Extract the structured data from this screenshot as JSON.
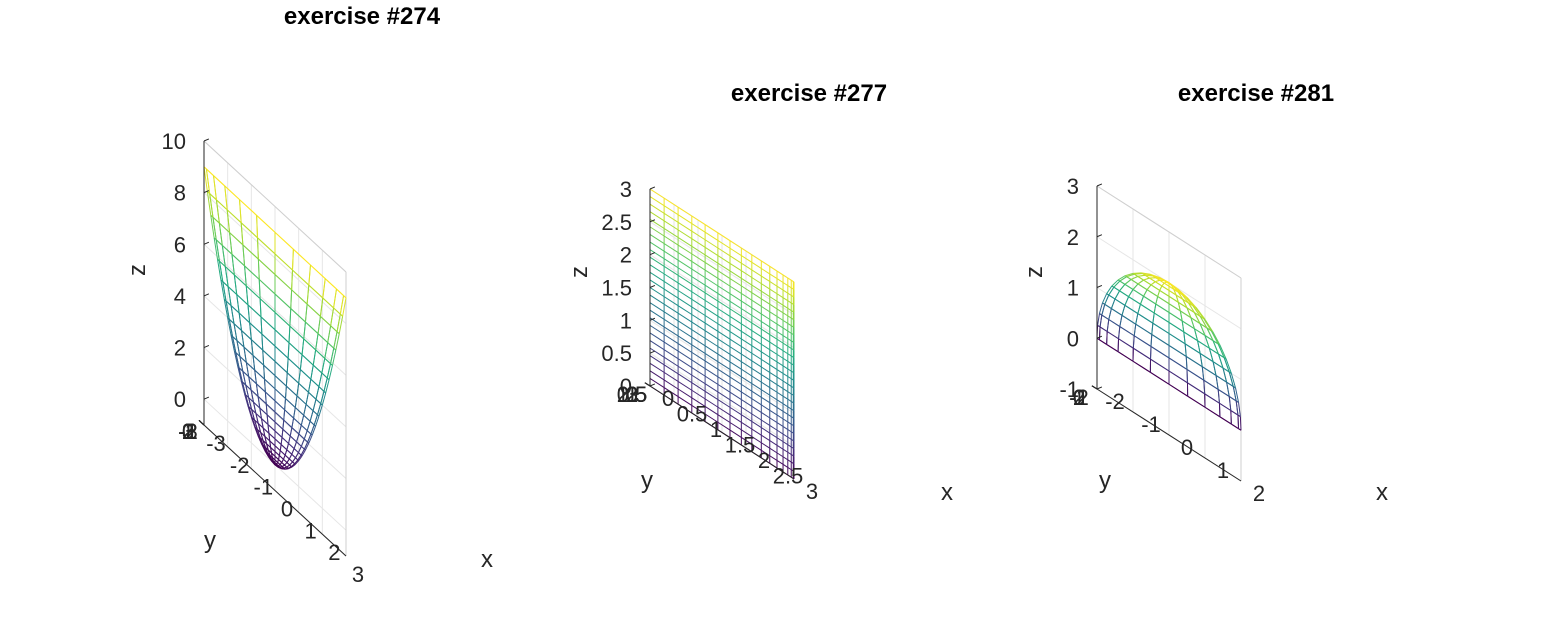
{
  "chart_data": [
    {
      "type": "surface-mesh",
      "title": "exercise #274",
      "xlabel": "x",
      "ylabel": "y",
      "zlabel": "z",
      "xlim": [
        -3,
        3
      ],
      "ylim": [
        -3,
        3
      ],
      "zlim": [
        -1,
        10
      ],
      "xticks": [
        "-3",
        "-2",
        "-1",
        "0",
        "1",
        "2",
        "3"
      ],
      "yticks": [
        "-3",
        "-2",
        "-1",
        "0",
        "1",
        "2",
        "3"
      ],
      "zticks": [
        "0",
        "2",
        "4",
        "6",
        "8",
        "10"
      ],
      "grid": true,
      "colormap": "viridis",
      "surface": "paraboloid z = x^2 + y^2, 0 <= r <= 3"
    },
    {
      "type": "surface-mesh",
      "title": "exercise #277",
      "xlabel": "x",
      "ylabel": "y",
      "zlabel": "z",
      "xlim": [
        0,
        3
      ],
      "ylim": [
        0,
        3
      ],
      "zlim": [
        0,
        3
      ],
      "xticks": [
        "0",
        "0.5",
        "1",
        "1.5",
        "2",
        "2.5",
        "3"
      ],
      "yticks": [
        "0",
        "0.5",
        "1",
        "1.5",
        "2",
        "2.5",
        "3"
      ],
      "zticks": [
        "0",
        "0.5",
        "1",
        "1.5",
        "2",
        "2.5",
        "3"
      ],
      "grid": true,
      "colormap": "viridis",
      "surface": "cylinder x^2 + y^2 = 9, first quadrant, 0 <= z <= 3"
    },
    {
      "type": "surface-mesh",
      "title": "exercise #281",
      "xlabel": "x",
      "ylabel": "y",
      "zlabel": "z",
      "xlim": [
        -2,
        2
      ],
      "ylim": [
        -2,
        2
      ],
      "zlim": [
        -1,
        3
      ],
      "xticks": [
        "-2",
        "-1",
        "0",
        "1",
        "2"
      ],
      "yticks": [
        "-2",
        "-1",
        "0",
        "1",
        "2"
      ],
      "zticks": [
        "-1",
        "0",
        "1",
        "2",
        "3"
      ],
      "grid": true,
      "colormap": "viridis",
      "surface": "upper hemisphere x^2 + y^2 + z^2 = 4, z >= 0"
    }
  ]
}
